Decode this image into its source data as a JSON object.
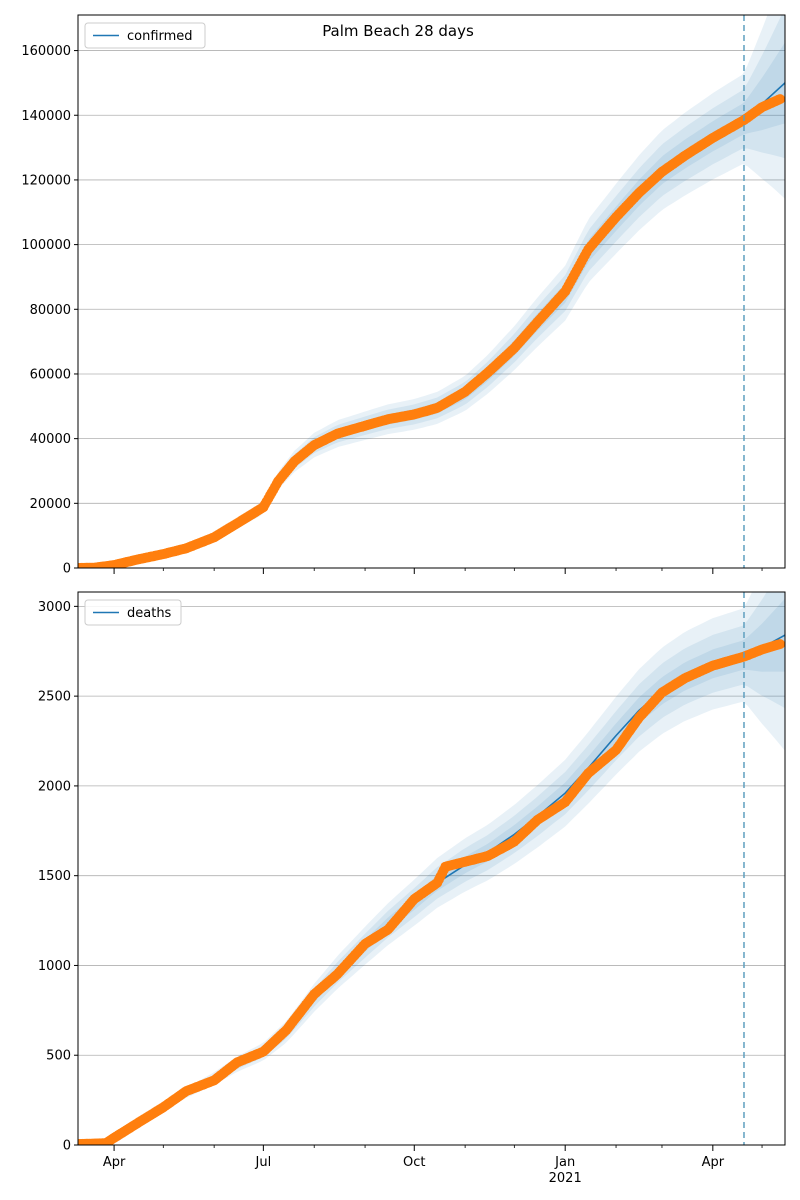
{
  "chart_data": [
    {
      "type": "line",
      "title": "Palm Beach 28 days",
      "legend": {
        "entry": "confirmed",
        "placement": "top-left"
      },
      "xlabel": "",
      "ylabel": "",
      "ylim": [
        0,
        171000
      ],
      "yticks": [
        0,
        20000,
        40000,
        60000,
        80000,
        100000,
        120000,
        140000,
        160000
      ],
      "grid": "horizontal",
      "forecast_start": "2021-04-20",
      "colors": {
        "line": "#1f77b4",
        "observed": "#ff7f0e",
        "band": "#1f77b4",
        "vline": "#5f9fbf"
      },
      "model": [
        [
          "2020-03-10",
          0
        ],
        [
          "2020-03-20",
          50
        ],
        [
          "2020-04-01",
          900
        ],
        [
          "2020-04-15",
          2600
        ],
        [
          "2020-05-01",
          4400
        ],
        [
          "2020-05-15",
          6300
        ],
        [
          "2020-06-01",
          9500
        ],
        [
          "2020-06-15",
          13500
        ],
        [
          "2020-07-01",
          18500
        ],
        [
          "2020-07-10",
          27000
        ],
        [
          "2020-07-20",
          33000
        ],
        [
          "2020-08-01",
          38000
        ],
        [
          "2020-08-15",
          41500
        ],
        [
          "2020-09-01",
          44000
        ],
        [
          "2020-09-15",
          46000
        ],
        [
          "2020-10-01",
          47500
        ],
        [
          "2020-10-15",
          49500
        ],
        [
          "2020-11-01",
          54000
        ],
        [
          "2020-11-15",
          60000
        ],
        [
          "2020-12-01",
          68000
        ],
        [
          "2020-12-15",
          76000
        ],
        [
          "2021-01-01",
          85000
        ],
        [
          "2021-01-15",
          98000
        ],
        [
          "2021-02-01",
          108000
        ],
        [
          "2021-02-15",
          116000
        ],
        [
          "2021-03-01",
          123000
        ],
        [
          "2021-03-15",
          128000
        ],
        [
          "2021-04-01",
          133500
        ],
        [
          "2021-04-20",
          139000
        ],
        [
          "2021-05-01",
          143500
        ],
        [
          "2021-05-15",
          150000
        ]
      ],
      "observed": [
        [
          "2020-03-10",
          0
        ],
        [
          "2020-03-20",
          100
        ],
        [
          "2020-04-01",
          900
        ],
        [
          "2020-04-15",
          2600
        ],
        [
          "2020-05-01",
          4300
        ],
        [
          "2020-05-15",
          6100
        ],
        [
          "2020-06-01",
          9500
        ],
        [
          "2020-06-15",
          13800
        ],
        [
          "2020-07-01",
          18800
        ],
        [
          "2020-07-10",
          26800
        ],
        [
          "2020-07-20",
          33000
        ],
        [
          "2020-08-01",
          38000
        ],
        [
          "2020-08-15",
          41500
        ],
        [
          "2020-09-01",
          44000
        ],
        [
          "2020-09-15",
          46000
        ],
        [
          "2020-10-01",
          47500
        ],
        [
          "2020-10-15",
          49500
        ],
        [
          "2020-11-01",
          54500
        ],
        [
          "2020-11-15",
          60500
        ],
        [
          "2020-12-01",
          68000
        ],
        [
          "2020-12-15",
          76000
        ],
        [
          "2021-01-01",
          85500
        ],
        [
          "2021-01-15",
          98500
        ],
        [
          "2021-02-01",
          108500
        ],
        [
          "2021-02-15",
          116000
        ],
        [
          "2021-03-01",
          122500
        ],
        [
          "2021-03-15",
          127500
        ],
        [
          "2021-04-01",
          133000
        ],
        [
          "2021-04-20",
          138500
        ],
        [
          "2021-05-01",
          142500
        ],
        [
          "2021-05-12",
          145000
        ]
      ],
      "band_halfwidths": [
        0.035,
        0.065,
        0.1
      ]
    },
    {
      "type": "line",
      "title": "",
      "legend": {
        "entry": "deaths",
        "placement": "top-left"
      },
      "xlabel": "",
      "ylabel": "",
      "ylim": [
        0,
        3080
      ],
      "yticks": [
        0,
        500,
        1000,
        1500,
        2000,
        2500,
        3000
      ],
      "grid": "horizontal",
      "forecast_start": "2021-04-20",
      "colors": {
        "line": "#1f77b4",
        "observed": "#ff7f0e",
        "band": "#1f77b4",
        "vline": "#5f9fbf"
      },
      "model": [
        [
          "2020-03-10",
          0
        ],
        [
          "2020-03-25",
          10
        ],
        [
          "2020-04-01",
          45
        ],
        [
          "2020-04-15",
          130
        ],
        [
          "2020-05-01",
          215
        ],
        [
          "2020-05-15",
          290
        ],
        [
          "2020-06-01",
          370
        ],
        [
          "2020-06-15",
          450
        ],
        [
          "2020-07-01",
          520
        ],
        [
          "2020-07-15",
          630
        ],
        [
          "2020-08-01",
          820
        ],
        [
          "2020-08-15",
          960
        ],
        [
          "2020-09-01",
          1110
        ],
        [
          "2020-09-15",
          1230
        ],
        [
          "2020-10-01",
          1350
        ],
        [
          "2020-10-15",
          1460
        ],
        [
          "2020-11-01",
          1560
        ],
        [
          "2020-11-15",
          1630
        ],
        [
          "2020-12-01",
          1730
        ],
        [
          "2020-12-15",
          1830
        ],
        [
          "2021-01-01",
          1960
        ],
        [
          "2021-01-15",
          2100
        ],
        [
          "2021-02-01",
          2280
        ],
        [
          "2021-02-15",
          2420
        ],
        [
          "2021-03-01",
          2530
        ],
        [
          "2021-03-15",
          2610
        ],
        [
          "2021-04-01",
          2680
        ],
        [
          "2021-04-20",
          2730
        ],
        [
          "2021-05-01",
          2770
        ],
        [
          "2021-05-15",
          2840
        ]
      ],
      "observed": [
        [
          "2020-03-10",
          5
        ],
        [
          "2020-03-27",
          10
        ],
        [
          "2020-04-01",
          40
        ],
        [
          "2020-04-15",
          120
        ],
        [
          "2020-05-01",
          210
        ],
        [
          "2020-05-15",
          300
        ],
        [
          "2020-06-01",
          360
        ],
        [
          "2020-06-15",
          460
        ],
        [
          "2020-07-01",
          520
        ],
        [
          "2020-07-15",
          640
        ],
        [
          "2020-08-01",
          840
        ],
        [
          "2020-08-15",
          950
        ],
        [
          "2020-09-01",
          1120
        ],
        [
          "2020-09-15",
          1200
        ],
        [
          "2020-10-01",
          1370
        ],
        [
          "2020-10-15",
          1460
        ],
        [
          "2020-10-20",
          1550
        ],
        [
          "2020-11-15",
          1610
        ],
        [
          "2020-12-01",
          1690
        ],
        [
          "2020-12-15",
          1810
        ],
        [
          "2021-01-01",
          1910
        ],
        [
          "2021-01-15",
          2070
        ],
        [
          "2021-02-01",
          2200
        ],
        [
          "2021-02-15",
          2380
        ],
        [
          "2021-03-01",
          2520
        ],
        [
          "2021-03-15",
          2600
        ],
        [
          "2021-04-01",
          2670
        ],
        [
          "2021-04-20",
          2720
        ],
        [
          "2021-05-01",
          2760
        ],
        [
          "2021-05-12",
          2790
        ]
      ],
      "band_halfwidths": [
        0.03,
        0.06,
        0.095
      ]
    }
  ],
  "x_axis": {
    "start": "2020-03-10",
    "end": "2021-05-15",
    "major_ticks": [
      {
        "date": "2020-04-01",
        "label": "Apr",
        "sublabel": ""
      },
      {
        "date": "2020-07-01",
        "label": "Jul",
        "sublabel": ""
      },
      {
        "date": "2020-10-01",
        "label": "Oct",
        "sublabel": ""
      },
      {
        "date": "2021-01-01",
        "label": "Jan",
        "sublabel": "2021"
      },
      {
        "date": "2021-04-01",
        "label": "Apr",
        "sublabel": ""
      }
    ],
    "minor_ticks": [
      "2020-05-01",
      "2020-06-01",
      "2020-08-01",
      "2020-09-01",
      "2020-11-01",
      "2020-12-01",
      "2021-02-01",
      "2021-03-01",
      "2021-05-01"
    ]
  }
}
